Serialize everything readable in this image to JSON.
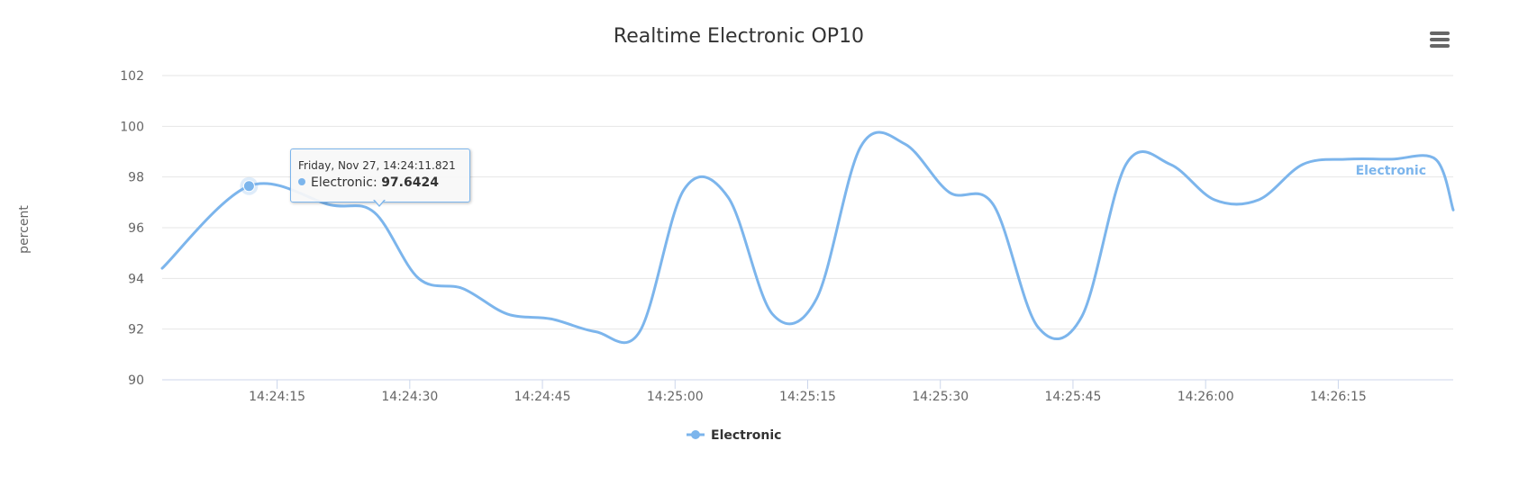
{
  "chart_data": {
    "type": "line",
    "title": "Realtime Electronic OP10",
    "ylabel": "percent",
    "xlabel": "",
    "ylim": [
      90,
      102
    ],
    "y_ticks": [
      "90",
      "92",
      "94",
      "96",
      "98",
      "100",
      "102"
    ],
    "x_range": [
      "14:24:02",
      "14:26:28"
    ],
    "x_ticks": [
      "14:24:15",
      "14:24:30",
      "14:24:45",
      "14:25:00",
      "14:25:15",
      "14:25:30",
      "14:25:45",
      "14:26:00",
      "14:26:15"
    ],
    "grid": true,
    "legend": "bottom-center",
    "series": [
      {
        "name": "Electronic",
        "color": "#7cb5ec",
        "x": [
          "14:24:02",
          "14:24:11.821",
          "14:24:21",
          "14:24:26",
          "14:24:31",
          "14:24:36",
          "14:24:41",
          "14:24:46",
          "14:24:51",
          "14:24:56",
          "14:25:01",
          "14:25:06",
          "14:25:11",
          "14:25:16",
          "14:25:21",
          "14:25:26",
          "14:25:31",
          "14:25:36",
          "14:25:41",
          "14:25:46",
          "14:25:51",
          "14:25:56",
          "14:26:01",
          "14:26:06",
          "14:26:11",
          "14:26:16",
          "14:26:21",
          "14:26:26",
          "14:26:28"
        ],
        "y": [
          94.4,
          97.6424,
          96.9,
          96.6,
          94.0,
          93.6,
          92.6,
          92.4,
          91.9,
          91.9,
          97.5,
          97.2,
          92.6,
          93.2,
          99.2,
          99.3,
          97.4,
          96.9,
          92.1,
          92.5,
          98.5,
          98.5,
          97.1,
          97.1,
          98.5,
          98.7,
          98.7,
          98.7,
          96.7
        ]
      }
    ],
    "series_label": "Electronic",
    "tooltip": {
      "header": "Friday, Nov 27, 14:24:11.821",
      "series": "Electronic",
      "value": "97.6424"
    }
  },
  "legend": {
    "items": [
      {
        "label": "Electronic",
        "color": "#7cb5ec"
      }
    ]
  },
  "colors": {
    "grid": "#e6e6e6",
    "axis": "#ccd6eb",
    "text": "#666666",
    "title": "#333333"
  },
  "menu": {
    "icon": "hamburger-menu-icon"
  }
}
